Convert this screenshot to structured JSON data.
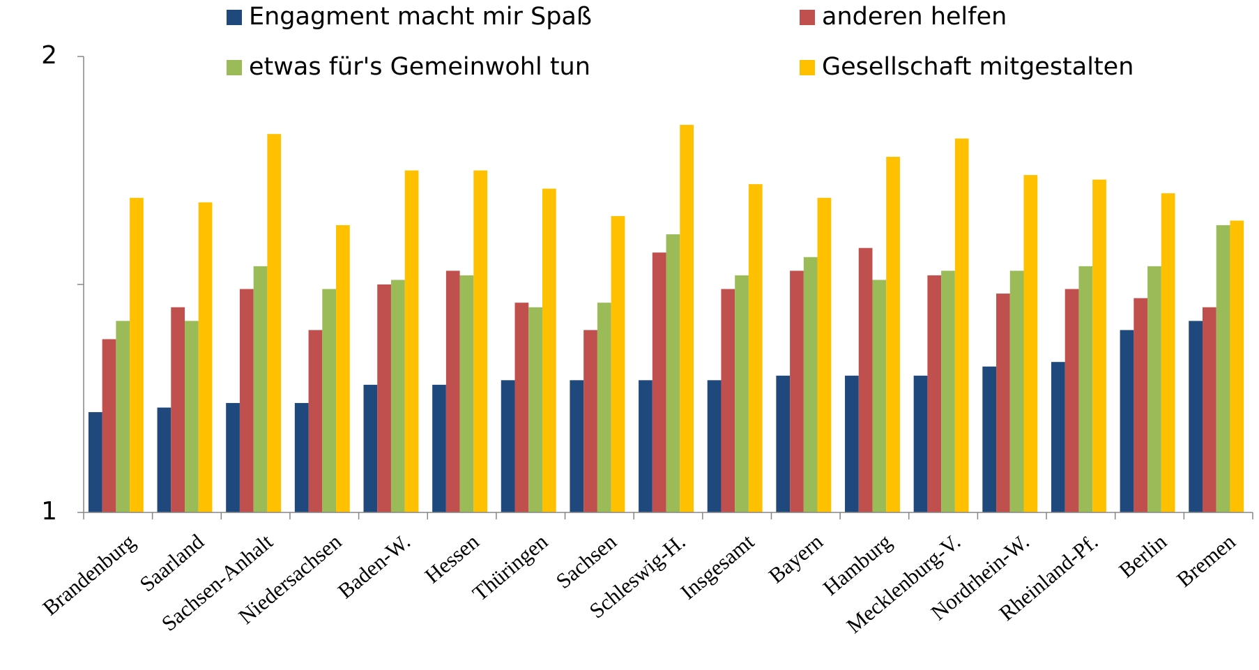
{
  "chart_data": {
    "type": "bar",
    "categories": [
      "Brandenburg",
      "Saarland",
      "Sachsen-Anhalt",
      "Niedersachsen",
      "Baden-W.",
      "Hessen",
      "Thüringen",
      "Sachsen",
      "Schleswig-H.",
      "Insgesamt",
      "Bayern",
      "Hamburg",
      "Mecklenburg-V.",
      "Nordrhein-W.",
      "Rheinland-Pf.",
      "Berlin",
      "Bremen"
    ],
    "series": [
      {
        "name": "Engagment macht mir Spaß",
        "color": "#1f497d",
        "values": [
          1.22,
          1.23,
          1.24,
          1.24,
          1.28,
          1.28,
          1.29,
          1.29,
          1.29,
          1.29,
          1.3,
          1.3,
          1.3,
          1.32,
          1.33,
          1.4,
          1.42
        ]
      },
      {
        "name": "anderen helfen",
        "color": "#c0504d",
        "values": [
          1.38,
          1.45,
          1.49,
          1.4,
          1.5,
          1.53,
          1.46,
          1.4,
          1.57,
          1.49,
          1.53,
          1.58,
          1.52,
          1.48,
          1.49,
          1.47,
          1.45
        ]
      },
      {
        "name": "etwas für's Gemeinwohl tun",
        "color": "#9bbb59",
        "values": [
          1.42,
          1.42,
          1.54,
          1.49,
          1.51,
          1.52,
          1.45,
          1.46,
          1.61,
          1.52,
          1.56,
          1.51,
          1.53,
          1.53,
          1.54,
          1.54,
          1.63
        ]
      },
      {
        "name": "Gesellschaft mitgestalten",
        "color": "#ffc000",
        "values": [
          1.69,
          1.68,
          1.83,
          1.63,
          1.75,
          1.75,
          1.71,
          1.65,
          1.85,
          1.72,
          1.69,
          1.78,
          1.82,
          1.74,
          1.73,
          1.7,
          1.64
        ]
      }
    ],
    "ylim": [
      1,
      2
    ],
    "yticks": [
      1,
      2
    ],
    "minor_yticks": [
      1.5
    ]
  }
}
